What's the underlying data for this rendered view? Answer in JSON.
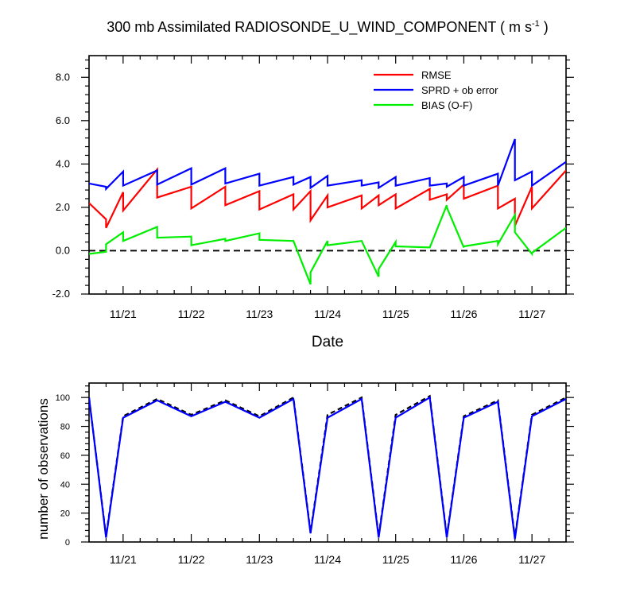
{
  "figure": {
    "title_main": "300 mb Assimilated RADIOSONDE_U_WIND_COMPONENT ( m s",
    "title_sup": "-1",
    "title_end": " )"
  },
  "chart_data": [
    {
      "type": "line",
      "xlabel": "Date",
      "ylabel": "",
      "xlim": [
        20.5,
        27.5
      ],
      "ylim": [
        -2.0,
        9.0
      ],
      "x_ticks": [
        21,
        22,
        23,
        24,
        25,
        26,
        27
      ],
      "x_tick_labels": [
        "11/21",
        "11/22",
        "11/23",
        "11/24",
        "11/25",
        "11/26",
        "11/27"
      ],
      "y_ticks": [
        -2.0,
        0.0,
        2.0,
        4.0,
        6.0,
        8.0
      ],
      "y_tick_labels": [
        "-2.0",
        "0.0",
        "2.0",
        "4.0",
        "6.0",
        "8.0"
      ],
      "reference_line": {
        "y": 0.0,
        "style": "dashed",
        "color": "#000000"
      },
      "legend": [
        {
          "label": "RMSE",
          "color": "#ff0000"
        },
        {
          "label": "SPRD + ob error",
          "color": "#0000ff"
        },
        {
          "label": "BIAS (O-F)",
          "color": "#00ee00"
        }
      ],
      "series": [
        {
          "name": "RMSE",
          "color": "#ff0000",
          "x": [
            20.5,
            20.75,
            20.75,
            21.0,
            21.0,
            21.5,
            21.5,
            22.0,
            22.0,
            22.5,
            22.5,
            23.0,
            23.0,
            23.5,
            23.5,
            23.75,
            23.75,
            24.0,
            24.0,
            24.5,
            24.5,
            24.75,
            24.75,
            25.0,
            25.0,
            25.5,
            25.5,
            25.75,
            25.75,
            26.0,
            26.0,
            26.5,
            26.5,
            26.75,
            26.75,
            27.0,
            27.0,
            27.5
          ],
          "y": [
            2.2,
            1.45,
            1.05,
            2.7,
            1.85,
            3.75,
            2.45,
            2.95,
            1.95,
            2.95,
            2.1,
            2.75,
            1.9,
            2.6,
            1.9,
            2.75,
            1.4,
            2.55,
            2.0,
            2.55,
            1.95,
            2.55,
            2.1,
            2.6,
            1.95,
            2.85,
            2.35,
            2.6,
            2.35,
            3.05,
            2.4,
            3.0,
            1.95,
            2.4,
            1.15,
            2.95,
            1.95,
            3.7
          ]
        },
        {
          "name": "SPRD + ob error",
          "color": "#0000ff",
          "x": [
            20.5,
            20.75,
            20.75,
            21.0,
            21.0,
            21.5,
            21.5,
            22.0,
            22.0,
            22.5,
            22.5,
            23.0,
            23.0,
            23.5,
            23.5,
            23.75,
            23.75,
            24.0,
            24.0,
            24.5,
            24.5,
            24.75,
            24.75,
            25.0,
            25.0,
            25.5,
            25.5,
            25.75,
            25.75,
            26.0,
            26.0,
            26.5,
            26.5,
            26.75,
            26.75,
            27.0,
            27.0,
            27.5
          ],
          "y": [
            3.1,
            2.95,
            2.85,
            3.65,
            3.0,
            3.7,
            3.05,
            3.8,
            3.05,
            3.8,
            3.1,
            3.55,
            3.0,
            3.4,
            3.05,
            3.4,
            2.9,
            3.45,
            3.0,
            3.25,
            3.0,
            3.15,
            2.9,
            3.4,
            3.0,
            3.35,
            3.0,
            3.1,
            2.95,
            3.4,
            3.0,
            3.55,
            3.0,
            5.15,
            3.25,
            3.65,
            3.0,
            4.1
          ]
        },
        {
          "name": "BIAS (O-F)",
          "color": "#00ee00",
          "x": [
            20.5,
            20.75,
            20.75,
            21.0,
            21.0,
            21.5,
            21.5,
            22.0,
            22.0,
            22.5,
            22.5,
            23.0,
            23.0,
            23.5,
            23.75,
            23.75,
            24.0,
            24.0,
            24.5,
            24.75,
            24.75,
            25.0,
            25.0,
            25.5,
            25.75,
            25.75,
            26.0,
            26.0,
            26.5,
            26.5,
            26.75,
            26.75,
            27.0,
            27.0,
            27.5
          ],
          "y": [
            -0.15,
            -0.05,
            0.3,
            0.85,
            0.45,
            1.1,
            0.6,
            0.65,
            0.25,
            0.55,
            0.45,
            0.8,
            0.5,
            0.45,
            -1.55,
            -1.0,
            0.45,
            0.25,
            0.45,
            -1.2,
            -0.85,
            0.4,
            0.2,
            0.15,
            2.1,
            2.0,
            0.15,
            0.2,
            0.45,
            0.3,
            1.65,
            0.85,
            -0.15,
            -0.1,
            1.05
          ]
        }
      ]
    },
    {
      "type": "line",
      "xlabel": "",
      "ylabel": "number of observations",
      "xlim": [
        20.5,
        27.5
      ],
      "ylim": [
        0,
        110
      ],
      "x_ticks": [
        21,
        22,
        23,
        24,
        25,
        26,
        27
      ],
      "x_tick_labels": [
        "11/21",
        "11/22",
        "11/23",
        "11/24",
        "11/25",
        "11/26",
        "11/27"
      ],
      "y_ticks": [
        0,
        20,
        40,
        60,
        80,
        100
      ],
      "y_tick_labels": [
        "0",
        "20",
        "40",
        "60",
        "80",
        "100"
      ],
      "series": [
        {
          "name": "observations (dashed)",
          "color": "#000000",
          "style": "dashed",
          "x": [
            20.5,
            20.75,
            21.0,
            21.5,
            22.0,
            22.5,
            23.0,
            23.5,
            23.75,
            24.0,
            24.5,
            24.75,
            25.0,
            25.5,
            25.75,
            26.0,
            26.5,
            26.75,
            27.0,
            27.5
          ],
          "y": [
            100,
            4,
            87,
            99,
            88,
            98,
            87,
            100,
            7,
            88,
            100,
            4,
            88,
            101,
            4,
            87,
            98,
            3,
            88,
            100
          ]
        },
        {
          "name": "observations",
          "color": "#0000ff",
          "style": "solid",
          "x": [
            20.5,
            20.75,
            21.0,
            21.5,
            22.0,
            22.5,
            23.0,
            23.5,
            23.75,
            24.0,
            24.5,
            24.75,
            25.0,
            25.5,
            25.75,
            26.0,
            26.5,
            26.75,
            27.0,
            27.5
          ],
          "y": [
            100,
            3,
            86,
            98,
            87,
            97,
            86,
            99,
            6,
            86,
            99,
            3,
            86,
            100,
            3,
            86,
            97,
            2,
            87,
            99
          ]
        }
      ]
    }
  ]
}
